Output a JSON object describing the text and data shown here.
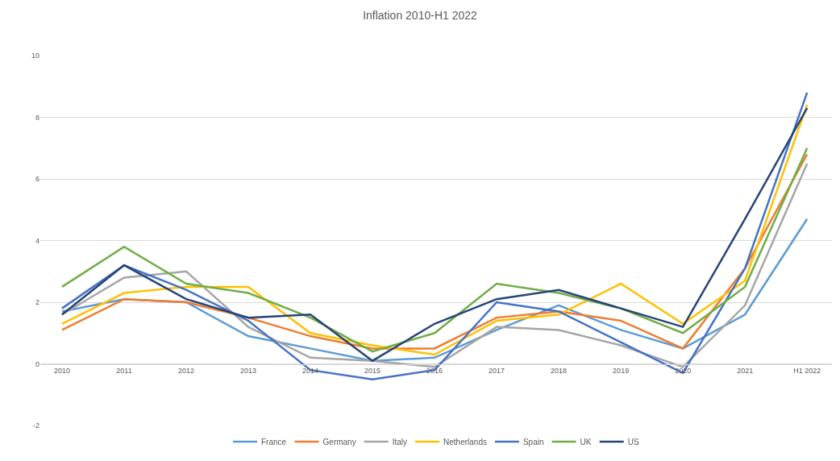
{
  "chart_data": {
    "type": "line",
    "title": "Inflation 2010-H1 2022",
    "categories": [
      "2010",
      "2011",
      "2012",
      "2013",
      "2014",
      "2015",
      "2016",
      "2017",
      "2018",
      "2019",
      "2020",
      "2021",
      "H1 2022"
    ],
    "series": [
      {
        "name": "France",
        "color": "#5b9bd5",
        "values": [
          1.7,
          2.1,
          2.0,
          0.9,
          0.5,
          0.1,
          0.2,
          1.1,
          1.9,
          1.1,
          0.5,
          1.6,
          4.7
        ]
      },
      {
        "name": "Germany",
        "color": "#ed7d31",
        "values": [
          1.1,
          2.1,
          2.0,
          1.5,
          0.9,
          0.5,
          0.5,
          1.5,
          1.7,
          1.4,
          0.5,
          3.1,
          6.8
        ]
      },
      {
        "name": "Italy",
        "color": "#a5a5a5",
        "values": [
          1.6,
          2.8,
          3.0,
          1.2,
          0.2,
          0.1,
          -0.1,
          1.2,
          1.1,
          0.6,
          -0.1,
          1.9,
          6.5
        ]
      },
      {
        "name": "Netherlands",
        "color": "#ffc000",
        "values": [
          1.3,
          2.3,
          2.5,
          2.5,
          1.0,
          0.6,
          0.3,
          1.4,
          1.6,
          2.6,
          1.3,
          2.7,
          8.4
        ]
      },
      {
        "name": "Spain",
        "color": "#4472c4",
        "values": [
          1.8,
          3.2,
          2.4,
          1.4,
          -0.2,
          -0.5,
          -0.2,
          2.0,
          1.7,
          0.7,
          -0.3,
          3.1,
          8.8
        ]
      },
      {
        "name": "UK",
        "color": "#70ad47",
        "values": [
          2.5,
          3.8,
          2.6,
          2.3,
          1.5,
          0.4,
          1.0,
          2.6,
          2.3,
          1.8,
          1.0,
          2.5,
          7.0
        ]
      },
      {
        "name": "US",
        "color": "#264478",
        "values": [
          1.6,
          3.2,
          2.1,
          1.5,
          1.6,
          0.1,
          1.3,
          2.1,
          2.4,
          1.8,
          1.2,
          4.7,
          8.3
        ]
      }
    ],
    "ylim": [
      -2,
      10
    ],
    "yticks": [
      -2,
      0,
      2,
      4,
      6,
      8,
      10
    ],
    "grid": "y",
    "legend": "bottom",
    "marker": "none",
    "line_style": "solid"
  }
}
